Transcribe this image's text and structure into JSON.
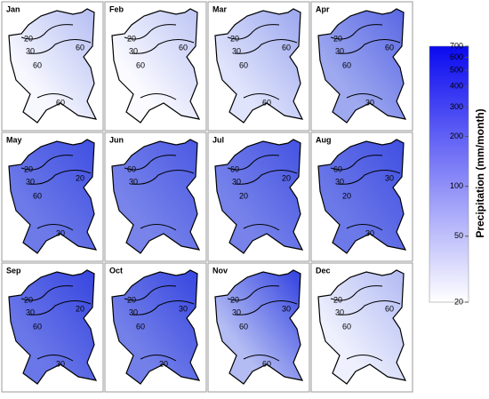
{
  "panels": [
    {
      "label": "Jan",
      "contour_labels": [
        "20",
        "30",
        "60",
        "60",
        "60"
      ],
      "fill": [
        "#f7f8fe",
        "#b3bcf3"
      ]
    },
    {
      "label": "Feb",
      "contour_labels": [
        "20",
        "30",
        "60",
        "60"
      ],
      "fill": [
        "#fbfbff",
        "#bcc4f4"
      ]
    },
    {
      "label": "Mar",
      "contour_labels": [
        "20",
        "30",
        "60",
        "60",
        "60"
      ],
      "fill": [
        "#dfe3fb",
        "#9aa6ef"
      ]
    },
    {
      "label": "Apr",
      "contour_labels": [
        "20",
        "30",
        "60",
        "60",
        "30"
      ],
      "fill": [
        "#9ea9ef",
        "#5866e4"
      ]
    },
    {
      "label": "May",
      "contour_labels": [
        "20",
        "30",
        "60",
        "20",
        "30"
      ],
      "fill": [
        "#6d7ae8",
        "#3f4fe2"
      ]
    },
    {
      "label": "Jun",
      "contour_labels": [
        "60",
        "30"
      ],
      "fill": [
        "#7884ea",
        "#4a58e3"
      ]
    },
    {
      "label": "Jul",
      "contour_labels": [
        "60",
        "30",
        "20",
        "20"
      ],
      "fill": [
        "#7783ea",
        "#4352e2"
      ]
    },
    {
      "label": "Aug",
      "contour_labels": [
        "60",
        "30",
        "20",
        "30",
        "30"
      ],
      "fill": [
        "#6c79e8",
        "#3f4ee2"
      ]
    },
    {
      "label": "Sep",
      "contour_labels": [
        "20",
        "30",
        "60",
        "20",
        "30"
      ],
      "fill": [
        "#6a77e8",
        "#3645e0"
      ]
    },
    {
      "label": "Oct",
      "contour_labels": [
        "20",
        "30",
        "60",
        "30",
        "20"
      ],
      "fill": [
        "#7380e9",
        "#3645e0"
      ]
    },
    {
      "label": "Nov",
      "contour_labels": [
        "20",
        "30",
        "60",
        "30",
        "60"
      ],
      "fill": [
        "#b3bcf3",
        "#2f3fe0"
      ]
    },
    {
      "label": "Dec",
      "contour_labels": [
        "20",
        "30",
        "60",
        "60"
      ],
      "fill": [
        "#eef0fd",
        "#b0b9f3"
      ]
    }
  ],
  "colorbar": {
    "title": "Precipitation (mm/month)",
    "lim": [
      20,
      700
    ],
    "scale": "log",
    "ticks": [
      20,
      50,
      100,
      200,
      300,
      400,
      500,
      600,
      700
    ],
    "colors": [
      "#ffffff",
      "#0a0af0"
    ]
  }
}
